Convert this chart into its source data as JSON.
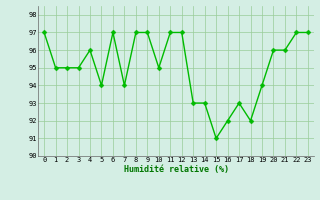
{
  "x": [
    0,
    1,
    2,
    3,
    4,
    5,
    6,
    7,
    8,
    9,
    10,
    11,
    12,
    13,
    14,
    15,
    16,
    17,
    18,
    19,
    20,
    21,
    22,
    23
  ],
  "y": [
    97,
    95,
    95,
    95,
    96,
    94,
    97,
    94,
    97,
    97,
    95,
    97,
    97,
    93,
    93,
    91,
    92,
    93,
    92,
    94,
    96,
    96,
    97,
    97
  ],
  "line_color": "#00bb00",
  "marker_color": "#00bb00",
  "bg_color": "#d4eee4",
  "grid_color": "#99cc99",
  "xlabel": "Humidité relative (%)",
  "xlim": [
    -0.5,
    23.5
  ],
  "ylim": [
    90,
    98.5
  ],
  "yticks": [
    90,
    91,
    92,
    93,
    94,
    95,
    96,
    97,
    98
  ],
  "xticks": [
    0,
    1,
    2,
    3,
    4,
    5,
    6,
    7,
    8,
    9,
    10,
    11,
    12,
    13,
    14,
    15,
    16,
    17,
    18,
    19,
    20,
    21,
    22,
    23
  ],
  "marker_size": 2.5,
  "line_width": 1.0
}
